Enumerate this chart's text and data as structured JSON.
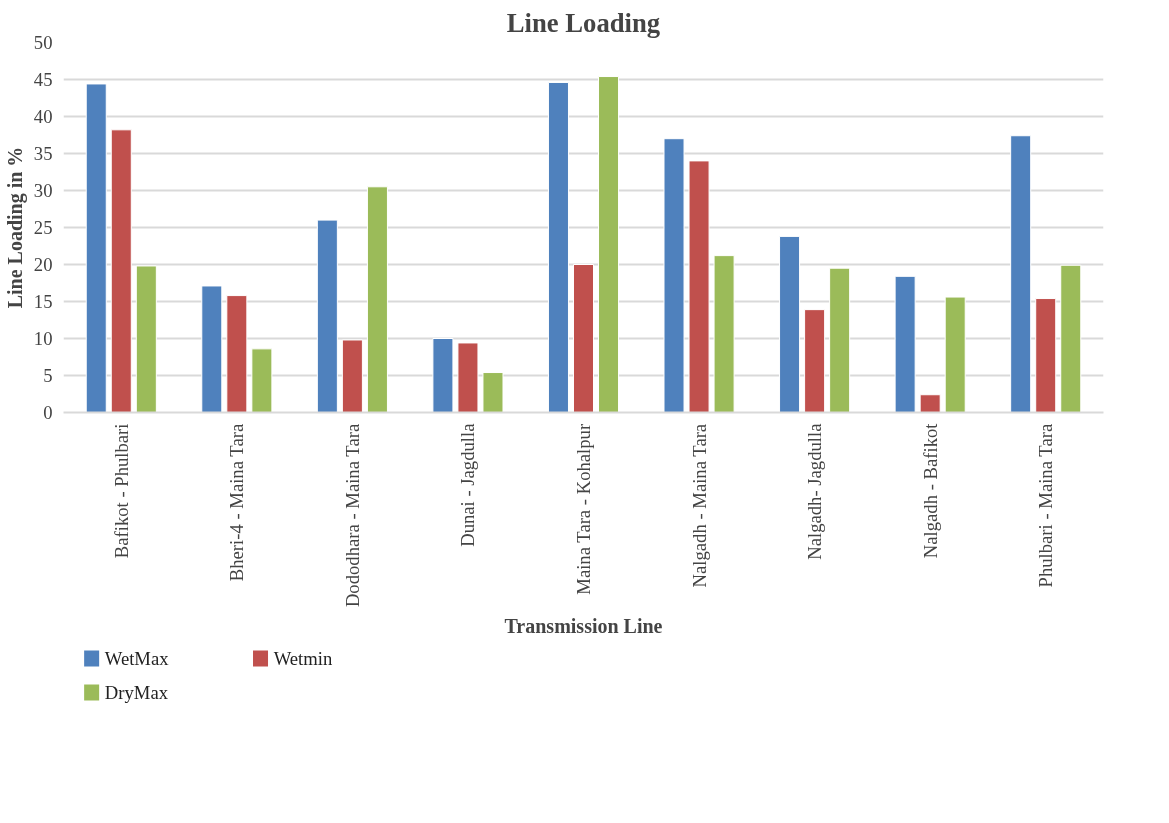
{
  "chart_data": {
    "type": "bar",
    "title": "Line Loading",
    "xlabel": "Transmission Line",
    "ylabel": "Line Loading in %",
    "categories": [
      "Bafikot - Phulbari",
      "Bheri-4 - Maina Tara",
      "Dododhara - Maina Tara",
      "Dunai - Jagdulla",
      "Maina Tara - Kohalpur",
      "Nalgadh - Maina Tara",
      "Nalgadh- Jagdulla",
      "Nalgadh - Bafikot",
      "Phulbari - Maina Tara"
    ],
    "series": [
      {
        "name": "WetMax",
        "color": "#4f81bd",
        "values": [
          44.4,
          17.1,
          26.0,
          10.0,
          44.6,
          37.0,
          23.8,
          18.4,
          37.4
        ]
      },
      {
        "name": "Wetmin",
        "color": "#c0504d",
        "values": [
          38.2,
          15.8,
          9.8,
          9.4,
          20.0,
          34.0,
          13.9,
          2.4,
          15.4
        ]
      },
      {
        "name": "DryMax",
        "color": "#9bbb59",
        "values": [
          19.8,
          8.6,
          30.5,
          5.4,
          45.4,
          21.2,
          19.5,
          15.6,
          19.9
        ]
      }
    ],
    "ylim": [
      0,
      50
    ],
    "yticks": [
      0,
      5,
      10,
      15,
      20,
      25,
      30,
      35,
      40,
      45,
      50
    ],
    "grid": "y",
    "legend": "bottom left"
  }
}
